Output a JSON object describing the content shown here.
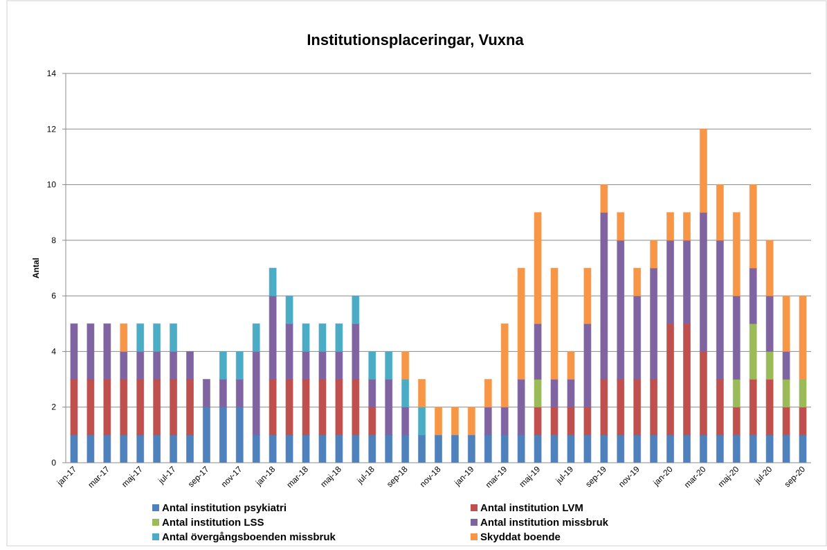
{
  "chart_data": {
    "type": "stacked-bar",
    "title": "Institutionsplaceringar, Vuxna",
    "y_label": "Antal",
    "categories": [
      "jan-17",
      null,
      "mar-17",
      null,
      "maj-17",
      null,
      "jul-17",
      null,
      "sep-17",
      null,
      "nov-17",
      null,
      "jan-18",
      null,
      "mar-18",
      null,
      "maj-18",
      null,
      "jul-18",
      null,
      "sep-18",
      null,
      "nov-18",
      null,
      "jan-19",
      null,
      "mar-19",
      null,
      "maj-19",
      null,
      "jul-19",
      null,
      "sep-19",
      null,
      "nov-19",
      null,
      "jan-20",
      null,
      "mar-20",
      null,
      "maj-20",
      null,
      "jul-20",
      null,
      "sep-20"
    ],
    "series": [
      {
        "name": "Antal institution psykiatri",
        "color": "#4f81bd",
        "values": [
          1,
          1,
          1,
          1,
          1,
          1,
          1,
          1,
          2,
          2,
          2,
          1,
          1,
          1,
          1,
          1,
          1,
          1,
          1,
          1,
          1,
          1,
          1,
          1,
          1,
          1,
          1,
          1,
          1,
          1,
          1,
          1,
          1,
          1,
          1,
          1,
          1,
          1,
          1,
          1,
          1,
          1,
          1,
          1,
          1
        ]
      },
      {
        "name": "Antal institution LVM",
        "color": "#c0504d",
        "values": [
          2,
          2,
          2,
          2,
          2,
          2,
          2,
          2,
          0,
          0,
          0,
          0,
          2,
          2,
          2,
          2,
          2,
          2,
          1,
          0,
          0,
          0,
          0,
          0,
          0,
          0,
          0,
          0,
          1,
          1,
          1,
          1,
          2,
          2,
          2,
          2,
          4,
          4,
          3,
          2,
          1,
          2,
          2,
          1,
          1
        ]
      },
      {
        "name": "Antal institution LSS",
        "color": "#9bbb59",
        "values": [
          0,
          0,
          0,
          0,
          0,
          0,
          0,
          0,
          0,
          0,
          0,
          0,
          0,
          0,
          0,
          0,
          0,
          0,
          0,
          0,
          0,
          0,
          0,
          0,
          0,
          0,
          0,
          0,
          1,
          0,
          0,
          0,
          0,
          0,
          0,
          0,
          0,
          0,
          0,
          0,
          1,
          2,
          1,
          1,
          1
        ]
      },
      {
        "name": "Antal institution missbruk",
        "color": "#8064a2",
        "values": [
          2,
          2,
          2,
          1,
          1,
          1,
          1,
          1,
          1,
          1,
          1,
          3,
          3,
          2,
          1,
          1,
          1,
          2,
          1,
          2,
          1,
          0,
          0,
          0,
          0,
          1,
          1,
          2,
          2,
          1,
          1,
          3,
          6,
          5,
          3,
          4,
          3,
          3,
          5,
          5,
          3,
          2,
          2,
          1,
          0
        ]
      },
      {
        "name": "Antal övergångsboenden missbruk",
        "color": "#4bacc6",
        "values": [
          0,
          0,
          0,
          0,
          1,
          1,
          1,
          0,
          0,
          1,
          1,
          1,
          1,
          1,
          1,
          1,
          1,
          1,
          1,
          1,
          1,
          1,
          0,
          0,
          0,
          0,
          0,
          0,
          0,
          0,
          0,
          0,
          0,
          0,
          0,
          0,
          0,
          0,
          0,
          0,
          0,
          0,
          0,
          0,
          0
        ]
      },
      {
        "name": "Skyddat boende",
        "color": "#f79646",
        "values": [
          0,
          0,
          0,
          1,
          0,
          0,
          0,
          0,
          0,
          0,
          0,
          0,
          0,
          0,
          0,
          0,
          0,
          0,
          0,
          0,
          1,
          1,
          1,
          1,
          1,
          1,
          3,
          4,
          4,
          4,
          1,
          2,
          1,
          1,
          1,
          1,
          1,
          1,
          3,
          2,
          3,
          3,
          2,
          2,
          3
        ]
      }
    ],
    "ylim": [
      0,
      14
    ],
    "yticks": [
      0,
      2,
      4,
      6,
      8,
      10,
      12,
      14
    ],
    "grid": true
  }
}
